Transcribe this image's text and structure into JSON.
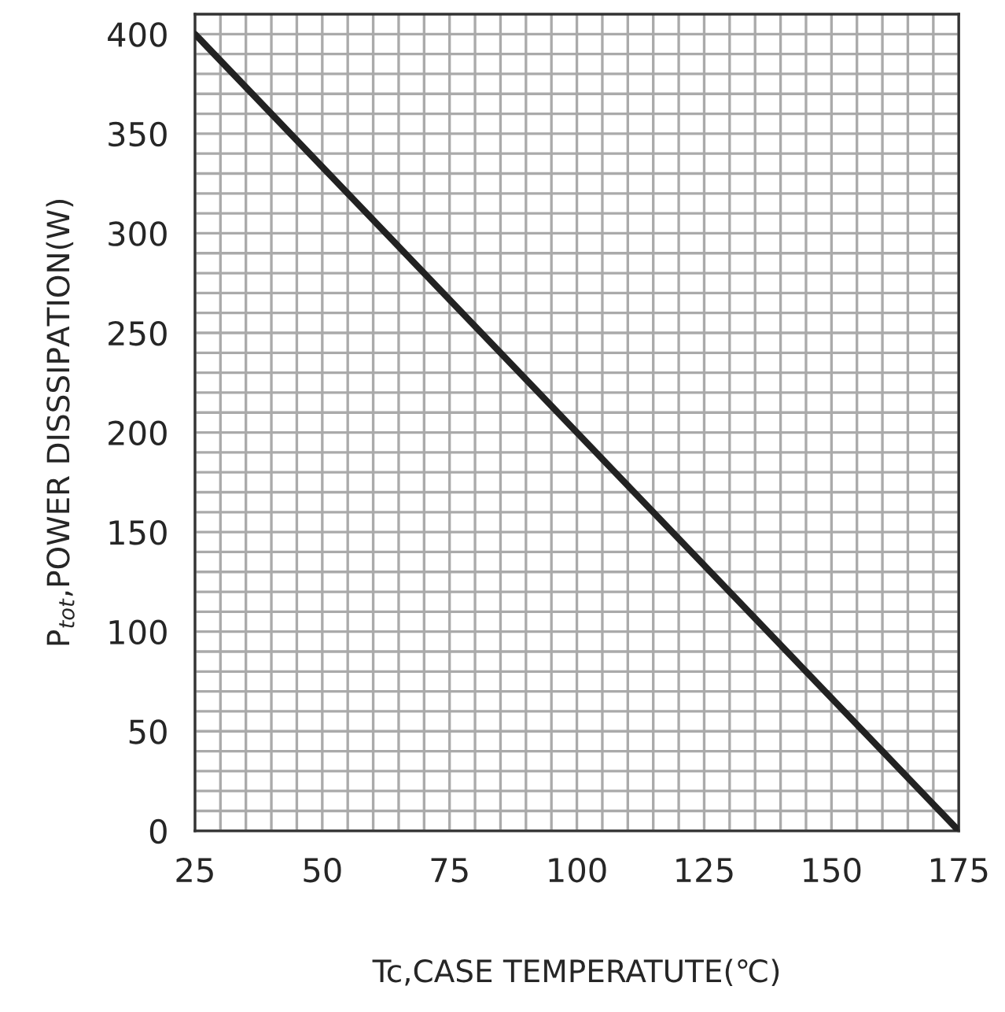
{
  "chart_data": {
    "type": "line",
    "xlabel": "Tc,CASE TEMPERATUTE(℃)",
    "ylabel": "P$_{tot}$,POWER DISSSIPATION(W)",
    "x": [
      25,
      175
    ],
    "series": [
      {
        "color": "#222222",
        "values": [
          400,
          0
        ]
      }
    ],
    "xlim": [
      25,
      175
    ],
    "ylim": [
      0,
      410
    ],
    "xticks": [
      25,
      {
        "value": 30,
        "label": null
      },
      {
        "value": 35,
        "label": null
      },
      {
        "value": 40,
        "label": null
      },
      {
        "value": 45,
        "label": null
      },
      50,
      {
        "value": 55,
        "label": null
      },
      {
        "value": 60,
        "label": null
      },
      {
        "value": 65,
        "label": null
      },
      {
        "value": 70,
        "label": null
      },
      75,
      {
        "value": 80,
        "label": null
      },
      {
        "value": 85,
        "label": null
      },
      {
        "value": 90,
        "label": null
      },
      {
        "value": 95,
        "label": null
      },
      100,
      {
        "value": 105,
        "label": null
      },
      {
        "value": 110,
        "label": null
      },
      {
        "value": 115,
        "label": null
      },
      {
        "value": 120,
        "label": null
      },
      125,
      {
        "value": 130,
        "label": null
      },
      {
        "value": 135,
        "label": null
      },
      {
        "value": 140,
        "label": null
      },
      {
        "value": 145,
        "label": null
      },
      150,
      {
        "value": 155,
        "label": null
      },
      {
        "value": 160,
        "label": null
      },
      {
        "value": 165,
        "label": null
      },
      {
        "value": 170,
        "label": null
      },
      175
    ],
    "yticks": [
      0,
      {
        "value": 10,
        "label": null
      },
      {
        "value": 20,
        "label": null
      },
      {
        "value": 30,
        "label": null
      },
      {
        "value": 40,
        "label": null
      },
      50,
      {
        "value": 60,
        "label": null
      },
      {
        "value": 70,
        "label": null
      },
      {
        "value": 80,
        "label": null
      },
      {
        "value": 90,
        "label": null
      },
      100,
      {
        "value": 110,
        "label": null
      },
      {
        "value": 120,
        "label": null
      },
      {
        "value": 130,
        "label": null
      },
      {
        "value": 140,
        "label": null
      },
      150,
      {
        "value": 160,
        "label": null
      },
      {
        "value": 170,
        "label": null
      },
      {
        "value": 180,
        "label": null
      },
      {
        "value": 190,
        "label": null
      },
      200,
      {
        "value": 210,
        "label": null
      },
      {
        "value": 220,
        "label": null
      },
      {
        "value": 230,
        "label": null
      },
      {
        "value": 240,
        "label": null
      },
      250,
      {
        "value": 260,
        "label": null
      },
      {
        "value": 270,
        "label": null
      },
      {
        "value": 280,
        "label": null
      },
      {
        "value": 290,
        "label": null
      },
      300,
      {
        "value": 310,
        "label": null
      },
      {
        "value": 320,
        "label": null
      },
      {
        "value": 330,
        "label": null
      },
      {
        "value": 340,
        "label": null
      },
      350,
      {
        "value": 360,
        "label": null
      },
      {
        "value": 370,
        "label": null
      },
      {
        "value": 380,
        "label": null
      },
      {
        "value": 390,
        "label": null
      },
      400
    ],
    "grid": true,
    "marker": "none",
    "line_style": "solid"
  }
}
